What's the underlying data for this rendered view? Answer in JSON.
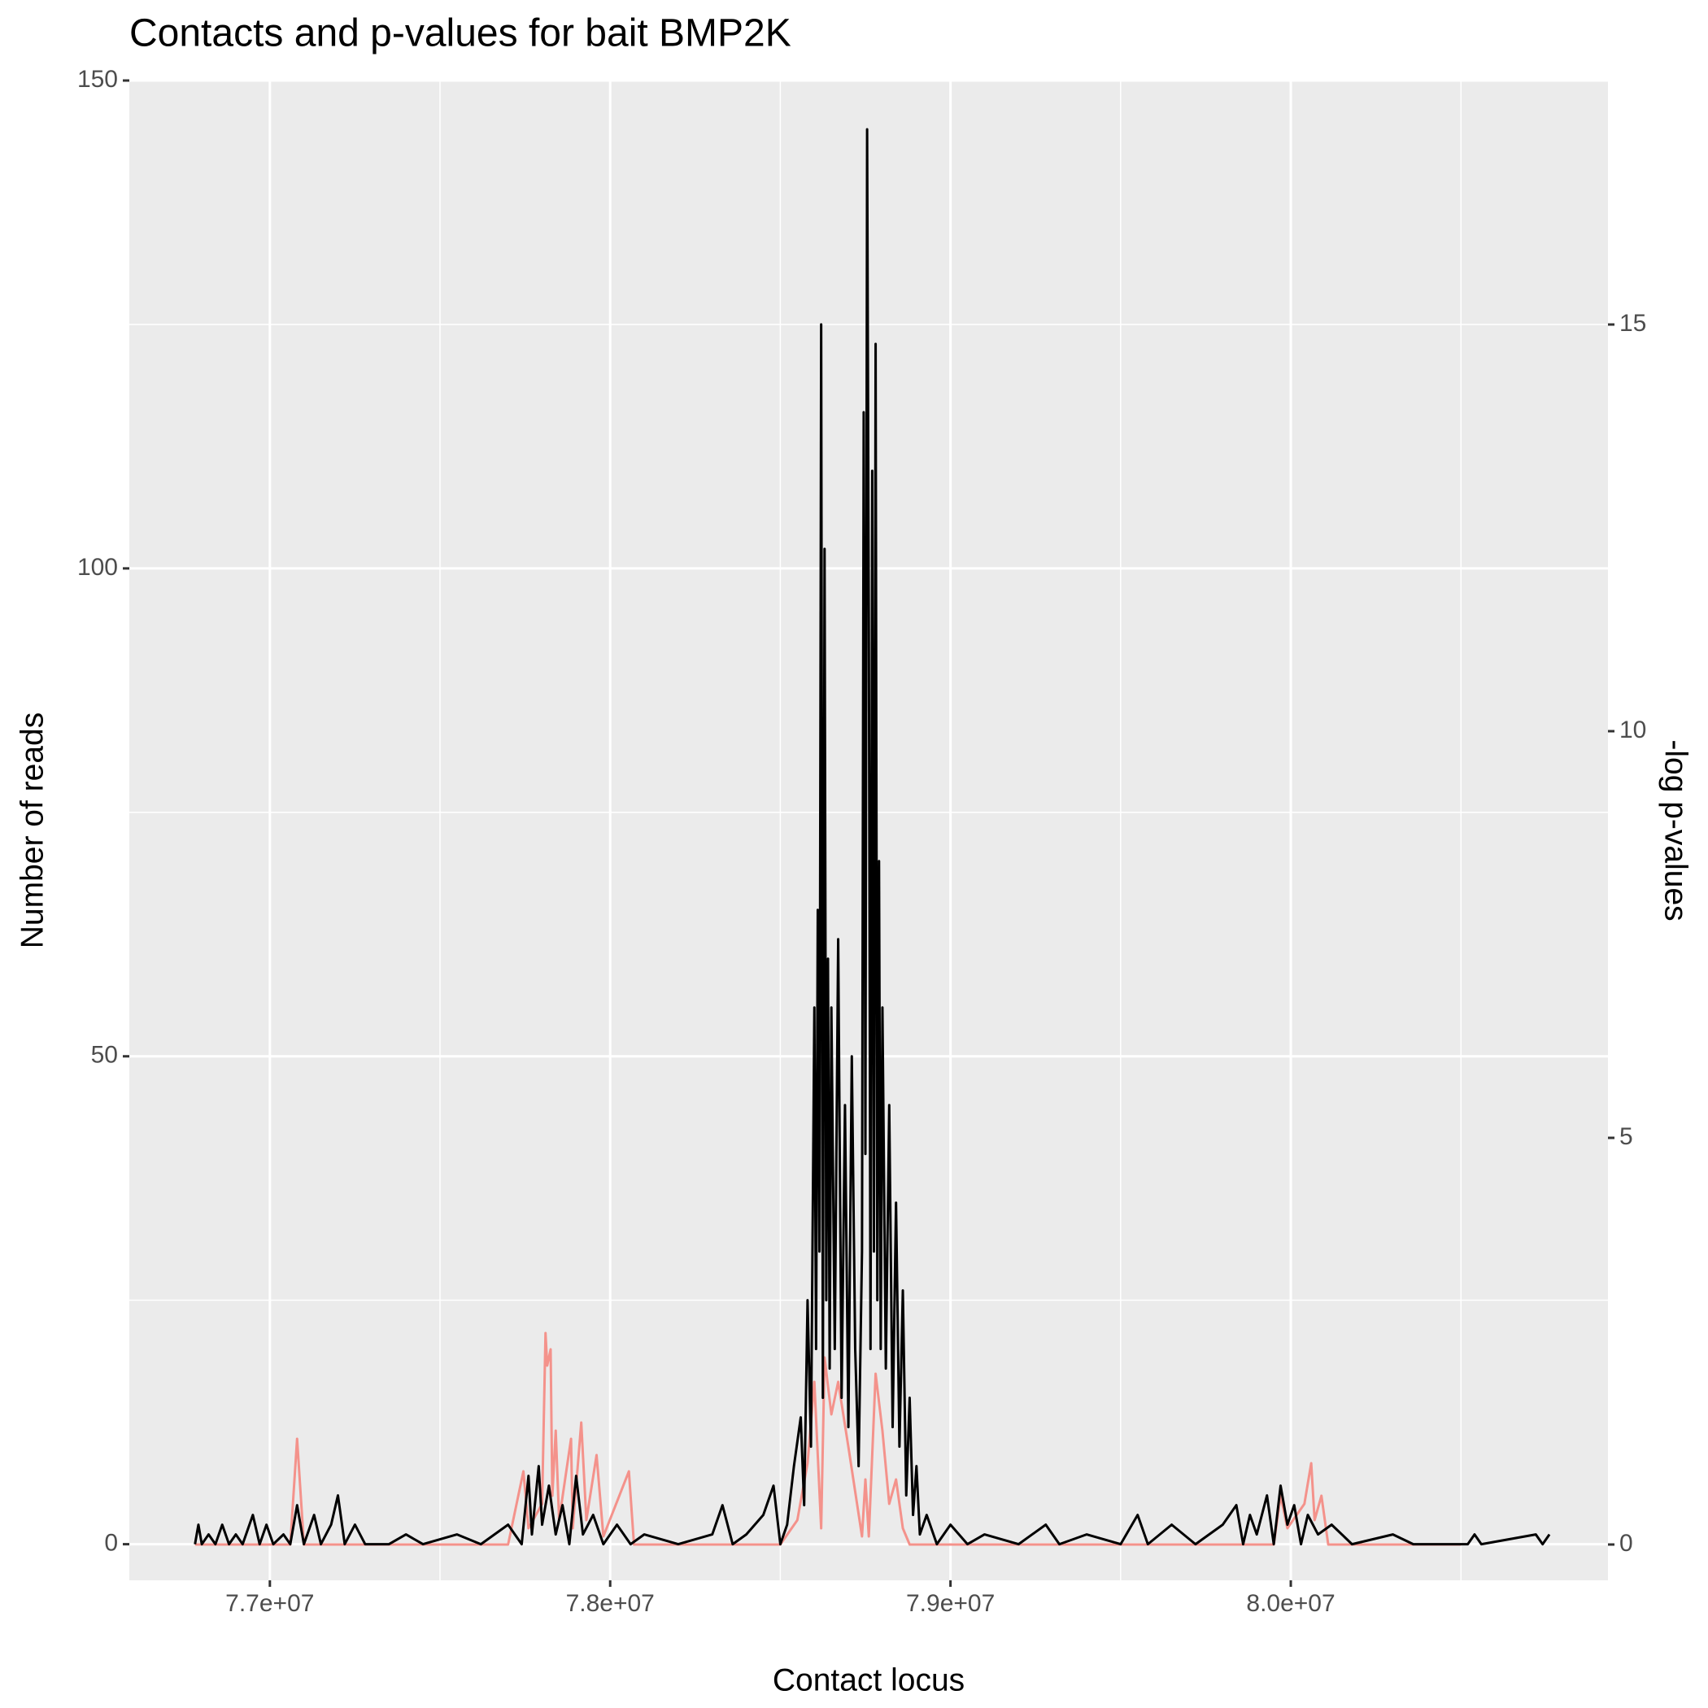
{
  "chart_data": {
    "type": "line",
    "title": "Contacts and p-values for bait BMP2K",
    "x_label": "Contact locus",
    "y_label": "Number of reads",
    "y2_label": "-log p-values",
    "xlim": [
      76587000,
      80932000
    ],
    "ylim": [
      -3.7,
      150
    ],
    "y2lim": [
      -0.44,
      18
    ],
    "xticks": [
      {
        "value": 77000000,
        "label": "7.7e+07"
      },
      {
        "value": 78000000,
        "label": "7.8e+07"
      },
      {
        "value": 79000000,
        "label": "7.9e+07"
      },
      {
        "value": 80000000,
        "label": "8.0e+07"
      }
    ],
    "yticks": [
      0,
      50,
      100,
      150
    ],
    "y2ticks": [
      0,
      5,
      10,
      15
    ],
    "minor_xgrid": [
      77500000,
      78500000,
      79500000,
      80500000
    ],
    "minor_ygrid": [
      25,
      75,
      125
    ],
    "grid": true,
    "series": [
      {
        "axis": "y2",
        "color": "#F4928B",
        "x": [
          76780000,
          77060000,
          77080000,
          77100000,
          77700000,
          77745000,
          77760000,
          77800000,
          77810000,
          77815000,
          77825000,
          77830000,
          77840000,
          77850000,
          77885000,
          77890000,
          77915000,
          77930000,
          77960000,
          77980000,
          78055000,
          78070000,
          78500000,
          78550000,
          78580000,
          78600000,
          78620000,
          78630000,
          78650000,
          78670000,
          78700000,
          78740000,
          78750000,
          78760000,
          78780000,
          78800000,
          78820000,
          78840000,
          78860000,
          78880000,
          79950000,
          79970000,
          79990000,
          80040000,
          80060000,
          80070000,
          80090000,
          80110000,
          80500000
        ],
        "values": [
          0,
          0,
          1.3,
          0,
          0,
          0.9,
          0.2,
          0.5,
          2.6,
          2.2,
          2.4,
          0.6,
          1.4,
          0.3,
          1.3,
          0.2,
          1.5,
          0.3,
          1.1,
          0.1,
          0.9,
          0,
          0,
          0.3,
          1.0,
          2.0,
          0.2,
          2.3,
          1.6,
          2.0,
          1.2,
          0.1,
          0.8,
          0.1,
          2.1,
          1.4,
          0.5,
          0.8,
          0.2,
          0,
          0,
          0.6,
          0.2,
          0.5,
          1.0,
          0.3,
          0.6,
          0,
          0
        ]
      },
      {
        "axis": "y",
        "color": "#000000",
        "x": [
          76780000,
          76790000,
          76800000,
          76820000,
          76840000,
          76860000,
          76880000,
          76900000,
          76920000,
          76950000,
          76970000,
          76990000,
          77010000,
          77040000,
          77060000,
          77080000,
          77100000,
          77130000,
          77150000,
          77180000,
          77200000,
          77220000,
          77250000,
          77280000,
          77350000,
          77400000,
          77450000,
          77550000,
          77620000,
          77700000,
          77740000,
          77760000,
          77770000,
          77790000,
          77800000,
          77820000,
          77840000,
          77860000,
          77880000,
          77900000,
          77920000,
          77950000,
          77980000,
          78020000,
          78060000,
          78100000,
          78200000,
          78300000,
          78330000,
          78360000,
          78400000,
          78450000,
          78480000,
          78500000,
          78520000,
          78540000,
          78560000,
          78570000,
          78580000,
          78590000,
          78600000,
          78605000,
          78610000,
          78615000,
          78620000,
          78625000,
          78630000,
          78635000,
          78640000,
          78645000,
          78650000,
          78660000,
          78670000,
          78680000,
          78690000,
          78700000,
          78710000,
          78720000,
          78730000,
          78740000,
          78745000,
          78750000,
          78755000,
          78760000,
          78765000,
          78770000,
          78775000,
          78780000,
          78785000,
          78790000,
          78795000,
          78800000,
          78810000,
          78820000,
          78830000,
          78840000,
          78850000,
          78860000,
          78870000,
          78880000,
          78890000,
          78900000,
          78910000,
          78930000,
          78960000,
          79000000,
          79050000,
          79100000,
          79200000,
          79280000,
          79320000,
          79400000,
          79500000,
          79550000,
          79580000,
          79650000,
          79720000,
          79800000,
          79840000,
          79860000,
          79880000,
          79900000,
          79930000,
          79950000,
          79970000,
          79990000,
          80010000,
          80030000,
          80050000,
          80080000,
          80120000,
          80180000,
          80300000,
          80360000,
          80520000,
          80540000,
          80560000,
          80720000,
          80740000,
          80760000
        ],
        "values": [
          0,
          2,
          0,
          1,
          0,
          2,
          0,
          1,
          0,
          3,
          0,
          2,
          0,
          1,
          0,
          4,
          0,
          3,
          0,
          2,
          5,
          0,
          2,
          0,
          0,
          1,
          0,
          1,
          0,
          2,
          0,
          7,
          1,
          8,
          2,
          6,
          1,
          4,
          0,
          7,
          1,
          3,
          0,
          2,
          0,
          1,
          0,
          1,
          4,
          0,
          1,
          3,
          6,
          0,
          2,
          8,
          13,
          4,
          25,
          10,
          55,
          20,
          65,
          30,
          125,
          15,
          102,
          25,
          60,
          18,
          55,
          20,
          62,
          15,
          45,
          12,
          50,
          20,
          8,
          30,
          116,
          40,
          145,
          95,
          20,
          110,
          30,
          123,
          25,
          70,
          20,
          55,
          18,
          45,
          12,
          35,
          10,
          26,
          5,
          15,
          3,
          8,
          1,
          3,
          0,
          2,
          0,
          1,
          0,
          2,
          0,
          1,
          0,
          3,
          0,
          2,
          0,
          2,
          4,
          0,
          3,
          1,
          5,
          0,
          6,
          2,
          4,
          0,
          3,
          1,
          2,
          0,
          1,
          0,
          0,
          1,
          0,
          1,
          0,
          1
        ]
      }
    ]
  }
}
